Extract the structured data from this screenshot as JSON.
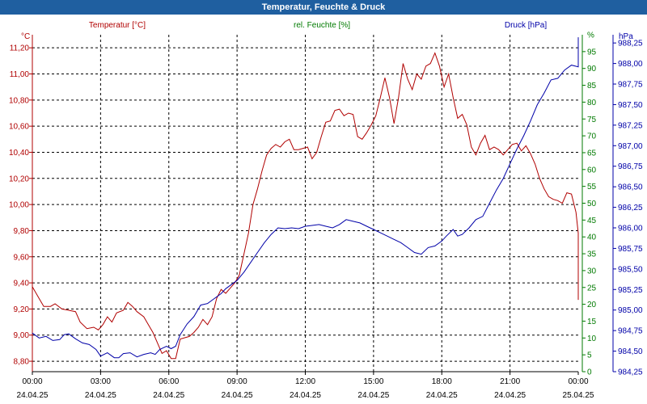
{
  "window": {
    "title": "Temperatur, Feuchte & Druck"
  },
  "chart_data": {
    "type": "line",
    "title": "Temperatur, Feuchte & Druck",
    "legend": {
      "temperature": "Temperatur [°C]",
      "humidity": "rel. Feuchte [%]",
      "pressure": "Druck [hPa]"
    },
    "units": {
      "left": "°C",
      "right1": "%",
      "right2": "hPa"
    },
    "colors": {
      "temperature": "#b00000",
      "humidity": "#007a00",
      "pressure": "#0000a8",
      "grid": "#000000"
    },
    "x_ticks": [
      {
        "time": "00:00",
        "date": "24.04.25"
      },
      {
        "time": "03:00",
        "date": "24.04.25"
      },
      {
        "time": "06:00",
        "date": "24.04.25"
      },
      {
        "time": "09:00",
        "date": "24.04.25"
      },
      {
        "time": "12:00",
        "date": "24.04.25"
      },
      {
        "time": "15:00",
        "date": "24.04.25"
      },
      {
        "time": "18:00",
        "date": "24.04.25"
      },
      {
        "time": "21:00",
        "date": "24.04.25"
      },
      {
        "time": "00:00",
        "date": "25.04.25"
      }
    ],
    "x_range_hours": [
      0,
      24
    ],
    "temp_axis": {
      "min": 8.72,
      "max": 11.3,
      "ticks": [
        "8,80",
        "9,00",
        "9,20",
        "9,40",
        "9,60",
        "9,80",
        "10,00",
        "10,20",
        "10,40",
        "10,60",
        "10,80",
        "11,00",
        "11,20"
      ]
    },
    "humidity_axis": {
      "min": 0,
      "max": 100,
      "ticks": [
        "0",
        "5",
        "10",
        "15",
        "20",
        "25",
        "30",
        "35",
        "40",
        "45",
        "50",
        "55",
        "60",
        "65",
        "70",
        "75",
        "80",
        "85",
        "90",
        "95",
        "%"
      ]
    },
    "pressure_axis": {
      "min": 984.25,
      "max": 988.35,
      "ticks": [
        "984,25",
        "984,50",
        "984,75",
        "985,00",
        "985,25",
        "985,50",
        "985,75",
        "986,00",
        "986,25",
        "986,50",
        "986,75",
        "987,00",
        "987,25",
        "987,50",
        "987,75",
        "988,00",
        "988,25"
      ]
    },
    "series": [
      {
        "name": "Temperatur [°C]",
        "axis": "temp",
        "points": [
          [
            0,
            9.37
          ],
          [
            0.3,
            9.28
          ],
          [
            0.5,
            9.22
          ],
          [
            0.8,
            9.22
          ],
          [
            1.0,
            9.24
          ],
          [
            1.3,
            9.2
          ],
          [
            1.6,
            9.19
          ],
          [
            1.9,
            9.18
          ],
          [
            2.1,
            9.1
          ],
          [
            2.4,
            9.05
          ],
          [
            2.7,
            9.06
          ],
          [
            2.9,
            9.04
          ],
          [
            3.1,
            9.08
          ],
          [
            3.3,
            9.14
          ],
          [
            3.5,
            9.1
          ],
          [
            3.7,
            9.17
          ],
          [
            4.0,
            9.19
          ],
          [
            4.2,
            9.25
          ],
          [
            4.4,
            9.22
          ],
          [
            4.6,
            9.18
          ],
          [
            4.9,
            9.14
          ],
          [
            5.1,
            9.08
          ],
          [
            5.3,
            9.02
          ],
          [
            5.5,
            8.94
          ],
          [
            5.7,
            8.86
          ],
          [
            5.9,
            8.88
          ],
          [
            6.1,
            8.82
          ],
          [
            6.3,
            8.82
          ],
          [
            6.5,
            8.97
          ],
          [
            6.7,
            8.98
          ],
          [
            6.9,
            8.99
          ],
          [
            7.1,
            9.02
          ],
          [
            7.3,
            9.06
          ],
          [
            7.5,
            9.12
          ],
          [
            7.7,
            9.08
          ],
          [
            7.9,
            9.14
          ],
          [
            8.1,
            9.28
          ],
          [
            8.3,
            9.35
          ],
          [
            8.5,
            9.32
          ],
          [
            8.7,
            9.36
          ],
          [
            8.9,
            9.4
          ],
          [
            9.1,
            9.46
          ],
          [
            9.3,
            9.62
          ],
          [
            9.5,
            9.78
          ],
          [
            9.7,
            10.0
          ],
          [
            9.9,
            10.12
          ],
          [
            10.1,
            10.26
          ],
          [
            10.3,
            10.38
          ],
          [
            10.5,
            10.43
          ],
          [
            10.7,
            10.46
          ],
          [
            10.9,
            10.44
          ],
          [
            11.1,
            10.48
          ],
          [
            11.3,
            10.5
          ],
          [
            11.5,
            10.42
          ],
          [
            11.7,
            10.42
          ],
          [
            11.9,
            10.43
          ],
          [
            12.1,
            10.44
          ],
          [
            12.3,
            10.35
          ],
          [
            12.5,
            10.4
          ],
          [
            12.7,
            10.52
          ],
          [
            12.9,
            10.63
          ],
          [
            13.1,
            10.64
          ],
          [
            13.3,
            10.72
          ],
          [
            13.5,
            10.73
          ],
          [
            13.7,
            10.68
          ],
          [
            13.9,
            10.7
          ],
          [
            14.1,
            10.69
          ],
          [
            14.3,
            10.52
          ],
          [
            14.5,
            10.5
          ],
          [
            14.7,
            10.55
          ],
          [
            14.9,
            10.61
          ],
          [
            15.1,
            10.68
          ],
          [
            15.3,
            10.82
          ],
          [
            15.5,
            10.97
          ],
          [
            15.7,
            10.82
          ],
          [
            15.9,
            10.62
          ],
          [
            16.1,
            10.82
          ],
          [
            16.3,
            11.08
          ],
          [
            16.5,
            10.96
          ],
          [
            16.7,
            10.88
          ],
          [
            16.9,
            11.0
          ],
          [
            17.1,
            10.96
          ],
          [
            17.3,
            11.06
          ],
          [
            17.5,
            11.08
          ],
          [
            17.7,
            11.16
          ],
          [
            17.9,
            11.06
          ],
          [
            18.1,
            10.9
          ],
          [
            18.3,
            11.0
          ],
          [
            18.5,
            10.82
          ],
          [
            18.7,
            10.66
          ],
          [
            18.9,
            10.69
          ],
          [
            19.1,
            10.61
          ],
          [
            19.3,
            10.44
          ],
          [
            19.5,
            10.38
          ],
          [
            19.7,
            10.47
          ],
          [
            19.9,
            10.53
          ],
          [
            20.1,
            10.42
          ],
          [
            20.3,
            10.44
          ],
          [
            20.5,
            10.42
          ],
          [
            20.7,
            10.38
          ],
          [
            20.9,
            10.42
          ],
          [
            21.1,
            10.46
          ],
          [
            21.3,
            10.47
          ],
          [
            21.5,
            10.41
          ],
          [
            21.7,
            10.45
          ],
          [
            21.9,
            10.39
          ],
          [
            22.1,
            10.31
          ],
          [
            22.3,
            10.2
          ],
          [
            22.5,
            10.12
          ],
          [
            22.7,
            10.06
          ],
          [
            22.9,
            10.04
          ],
          [
            23.1,
            10.03
          ],
          [
            23.3,
            10.01
          ],
          [
            23.5,
            10.09
          ],
          [
            23.7,
            10.08
          ],
          [
            23.9,
            9.94
          ],
          [
            24.1,
            9.78
          ],
          [
            24.3,
            9.6
          ],
          [
            24.5,
            9.42
          ],
          [
            24.7,
            9.3
          ],
          [
            24.9,
            9.27
          ]
        ]
      },
      {
        "name": "Druck [hPa]",
        "axis": "pressure",
        "points": [
          [
            0,
            984.72
          ],
          [
            0.3,
            984.66
          ],
          [
            0.6,
            984.68
          ],
          [
            0.9,
            984.63
          ],
          [
            1.2,
            984.64
          ],
          [
            1.4,
            984.7
          ],
          [
            1.6,
            984.71
          ],
          [
            1.9,
            984.65
          ],
          [
            2.2,
            984.6
          ],
          [
            2.5,
            984.58
          ],
          [
            2.8,
            984.52
          ],
          [
            3.0,
            984.44
          ],
          [
            3.3,
            984.48
          ],
          [
            3.6,
            984.42
          ],
          [
            3.8,
            984.42
          ],
          [
            4.0,
            984.47
          ],
          [
            4.3,
            984.48
          ],
          [
            4.6,
            984.43
          ],
          [
            4.9,
            984.46
          ],
          [
            5.2,
            984.48
          ],
          [
            5.4,
            984.46
          ],
          [
            5.6,
            984.52
          ],
          [
            5.9,
            984.56
          ],
          [
            6.1,
            984.53
          ],
          [
            6.3,
            984.56
          ],
          [
            6.5,
            984.7
          ],
          [
            6.8,
            984.83
          ],
          [
            7.1,
            984.92
          ],
          [
            7.4,
            985.06
          ],
          [
            7.7,
            985.08
          ],
          [
            8.0,
            985.14
          ],
          [
            8.3,
            985.2
          ],
          [
            8.5,
            985.26
          ],
          [
            8.8,
            985.32
          ],
          [
            9.0,
            985.36
          ],
          [
            9.3,
            985.46
          ],
          [
            9.6,
            985.58
          ],
          [
            9.9,
            985.7
          ],
          [
            10.2,
            985.82
          ],
          [
            10.5,
            985.92
          ],
          [
            10.8,
            986.0
          ],
          [
            11.1,
            985.99
          ],
          [
            11.4,
            986.0
          ],
          [
            11.7,
            985.99
          ],
          [
            12.0,
            986.02
          ],
          [
            12.3,
            986.03
          ],
          [
            12.6,
            986.04
          ],
          [
            12.9,
            986.02
          ],
          [
            13.2,
            986.0
          ],
          [
            13.5,
            986.04
          ],
          [
            13.8,
            986.1
          ],
          [
            14.1,
            986.08
          ],
          [
            14.4,
            986.06
          ],
          [
            14.7,
            986.02
          ],
          [
            15.0,
            985.98
          ],
          [
            15.3,
            985.94
          ],
          [
            15.6,
            985.9
          ],
          [
            15.9,
            985.86
          ],
          [
            16.2,
            985.82
          ],
          [
            16.5,
            985.76
          ],
          [
            16.8,
            985.7
          ],
          [
            17.1,
            985.68
          ],
          [
            17.4,
            985.76
          ],
          [
            17.7,
            985.78
          ],
          [
            18.0,
            985.84
          ],
          [
            18.2,
            985.9
          ],
          [
            18.5,
            985.98
          ],
          [
            18.7,
            985.9
          ],
          [
            18.9,
            985.92
          ],
          [
            19.2,
            986.0
          ],
          [
            19.5,
            986.1
          ],
          [
            19.8,
            986.14
          ],
          [
            20.1,
            986.3
          ],
          [
            20.4,
            986.46
          ],
          [
            20.7,
            986.6
          ],
          [
            21.0,
            986.78
          ],
          [
            21.3,
            986.96
          ],
          [
            21.6,
            987.12
          ],
          [
            21.9,
            987.3
          ],
          [
            22.2,
            987.5
          ],
          [
            22.5,
            987.64
          ],
          [
            22.8,
            987.8
          ],
          [
            23.1,
            987.82
          ],
          [
            23.4,
            987.92
          ],
          [
            23.7,
            987.98
          ],
          [
            24.0,
            987.96
          ],
          [
            24.3,
            988.02
          ],
          [
            24.6,
            988.16
          ],
          [
            24.9,
            988.28
          ],
          [
            25.0,
            988.32
          ]
        ]
      }
    ]
  }
}
